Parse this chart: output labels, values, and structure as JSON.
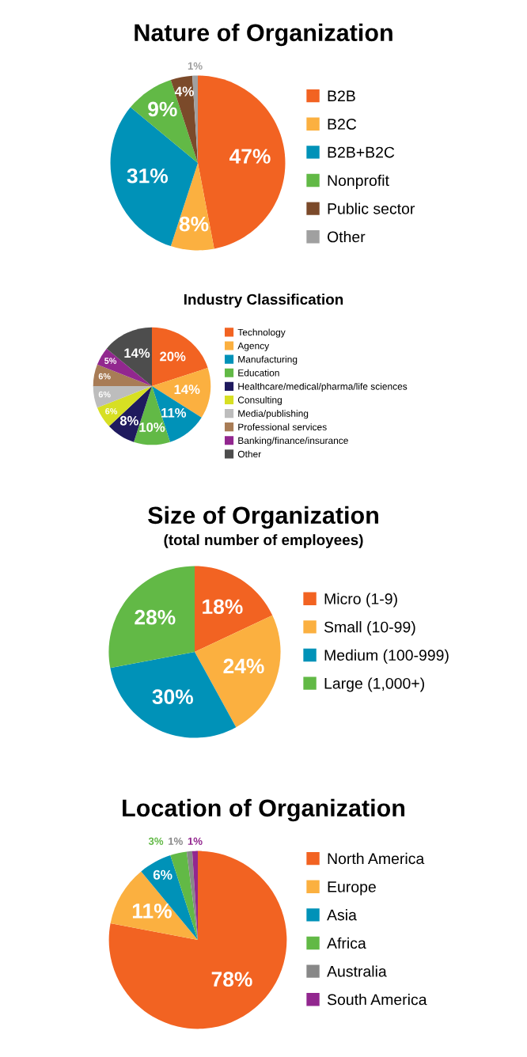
{
  "chart_data": [
    {
      "type": "pie",
      "title": "Nature of Organization",
      "categories": [
        "B2B",
        "B2C",
        "B2B+B2C",
        "Nonprofit",
        "Public sector",
        "Other"
      ],
      "values": [
        47,
        8,
        31,
        9,
        4,
        1
      ],
      "colors": [
        "#f26322",
        "#fbb040",
        "#0092b8",
        "#62b946",
        "#7b4a2a",
        "#a0a0a0"
      ],
      "value_labels": [
        "47%",
        "8%",
        "31%",
        "9%",
        "4%",
        "1%"
      ],
      "legend": "right"
    },
    {
      "type": "pie",
      "title": "Industry Classification",
      "categories": [
        "Technology",
        "Agency",
        "Manufacturing",
        "Education",
        "Healthcare/medical/pharma/life sciences",
        "Consulting",
        "Media/publishing",
        "Professional services",
        "Banking/finance/insurance",
        "Other"
      ],
      "values": [
        20,
        14,
        11,
        10,
        8,
        6,
        6,
        6,
        5,
        14
      ],
      "colors": [
        "#f26322",
        "#fbb040",
        "#0092b8",
        "#62b946",
        "#1f1a5e",
        "#d7df23",
        "#bdbdbd",
        "#a87c56",
        "#92278f",
        "#4d4d4d"
      ],
      "value_labels": [
        "20%",
        "14%",
        "11%",
        "10%",
        "8%",
        "6%",
        "6%",
        "6%",
        "5%",
        "14%"
      ],
      "legend": "right"
    },
    {
      "type": "pie",
      "title": "Size of Organization",
      "subtitle": "(total number of employees)",
      "categories": [
        "Micro (1-9)",
        "Small (10-99)",
        "Medium (100-999)",
        "Large (1,000+)"
      ],
      "values": [
        18,
        24,
        30,
        28
      ],
      "colors": [
        "#f26322",
        "#fbb040",
        "#0092b8",
        "#62b946"
      ],
      "value_labels": [
        "18%",
        "24%",
        "30%",
        "28%"
      ],
      "legend": "right"
    },
    {
      "type": "pie",
      "title": "Location of Organization",
      "categories": [
        "North America",
        "Europe",
        "Asia",
        "Africa",
        "Australia",
        "South America"
      ],
      "values": [
        78,
        11,
        6,
        3,
        1,
        1
      ],
      "colors": [
        "#f26322",
        "#fbb040",
        "#0092b8",
        "#62b946",
        "#888888",
        "#92278f"
      ],
      "value_labels": [
        "78%",
        "11%",
        "6%",
        "3%",
        "1%",
        "1%"
      ],
      "legend": "right"
    }
  ]
}
